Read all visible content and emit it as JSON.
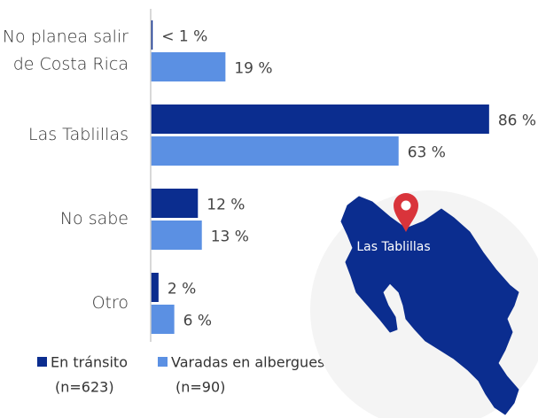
{
  "chart_data": {
    "type": "barh",
    "categories": [
      [
        "No planea salir",
        "de Costa Rica"
      ],
      [
        "Las Tablillas"
      ],
      [
        "No sabe"
      ],
      [
        "Otro"
      ]
    ],
    "series": [
      {
        "name": "En tránsito",
        "sample": "(n=623)",
        "color": "#0b2d8f",
        "values": [
          0.5,
          86,
          12,
          2
        ],
        "value_labels": [
          "< 1 %",
          "86 %",
          "12 %",
          "2 %"
        ]
      },
      {
        "name": "Varadas en albergues",
        "sample": "(n=90)",
        "color": "#5b90e3",
        "values": [
          19,
          63,
          13,
          6
        ],
        "value_labels": [
          "19 %",
          "63 %",
          "13 %",
          "6 %"
        ]
      }
    ],
    "xlim": [
      0,
      100
    ],
    "annotation": "Las Tablillas"
  }
}
